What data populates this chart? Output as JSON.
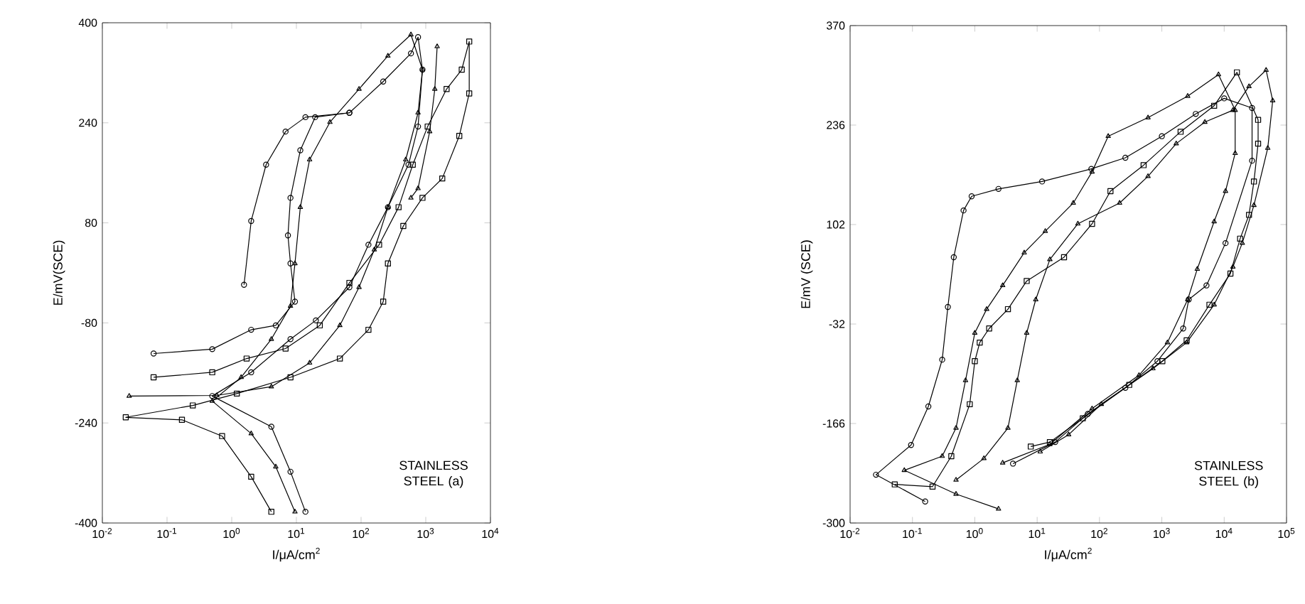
{
  "chart_data": [
    {
      "type": "line",
      "xlabel": "I/μA/cm$^{2}$",
      "ylabel": "E/mV(SCE)",
      "annotations": [
        "STAINLESS STEEL (a)"
      ],
      "log": "x",
      "xlim": [
        0.01,
        10000
      ],
      "ylim": [
        -400,
        400
      ],
      "xticks": [
        {
          "value": 0.01,
          "label": "10$^{-2}$"
        },
        {
          "value": 0.1,
          "label": "10$^{-1}$"
        },
        {
          "value": 1,
          "label": "10$^{0}$"
        },
        {
          "value": 10,
          "label": "10$^{1}$"
        },
        {
          "value": 100,
          "label": "10$^{2}$"
        },
        {
          "value": 1000,
          "label": "10$^{3}$"
        },
        {
          "value": 10000,
          "label": "10$^{4}$"
        }
      ],
      "yticks": [
        -400,
        -240,
        -80,
        80,
        240,
        400
      ],
      "series": [
        {
          "color": "#000000",
          "marker": "circle",
          "x": [
            13.8,
            8.1,
            4.1,
            0.5,
            2.0,
            8.1,
            20,
            66,
            130,
            260,
            540,
            760,
            890,
            760,
            590,
            220,
            66,
            19.5,
            11.5,
            8.1,
            7.4,
            8.1,
            9.5,
            4.8,
            2.0,
            0.5,
            0.062
          ],
          "values": [
            -382,
            -318,
            -246,
            -197,
            -159,
            -106,
            -76,
            -23,
            45,
            105,
            173,
            234,
            325,
            377,
            351,
            306,
            256,
            249,
            196,
            120,
            60,
            15,
            -46,
            -84,
            -91,
            -122,
            -129
          ]
        },
        {
          "color": "#000000",
          "marker": "triangle",
          "x": [
            9.5,
            4.8,
            2.0,
            0.5,
            1.4,
            4.1,
            8.1,
            9.5,
            11.5,
            16,
            33,
            93,
            260,
            590,
            890,
            760,
            490,
            260,
            160,
            93,
            47,
            16,
            4.1,
            0.59,
            0.026
          ],
          "values": [
            -382,
            -310,
            -257,
            -205,
            -167,
            -106,
            -53,
            15,
            105,
            181,
            241,
            294,
            347,
            381,
            325,
            256,
            181,
            105,
            37,
            -23,
            -84,
            -144,
            -182,
            -196,
            -197
          ]
        },
        {
          "color": "#000000",
          "marker": "circle",
          "x": [
            1.55,
            2.0,
            3.4,
            6.8,
            13.8,
            66
          ],
          "values": [
            -19,
            83,
            173,
            226,
            249,
            256
          ]
        },
        {
          "color": "#000000",
          "marker": "square",
          "x": [
            4.1,
            2.0,
            0.71,
            0.17,
            0.023,
            0.25,
            1.2,
            8.1,
            47,
            130,
            220,
            260,
            450,
            890,
            1800,
            3300,
            4700,
            4700,
            3600,
            2100,
            1070,
            630,
            380,
            190,
            66,
            23,
            6.8,
            1.7,
            0.5,
            0.062
          ],
          "values": [
            -382,
            -326,
            -261,
            -235,
            -231,
            -212,
            -193,
            -167,
            -137,
            -91,
            -46,
            15,
            75,
            120,
            151,
            219,
            287,
            370,
            325,
            294,
            234,
            173,
            105,
            45,
            -16,
            -84,
            -121,
            -137,
            -159,
            -167
          ]
        },
        {
          "color": "#000000",
          "marker": "triangle",
          "x": [
            1500,
            1380,
            1150,
            760,
            590
          ],
          "values": [
            362,
            294,
            226,
            135,
            120
          ]
        }
      ]
    },
    {
      "type": "line",
      "xlabel": "I/μA/cm$^{2}$",
      "ylabel": "E/mV (SCE)",
      "annotations": [
        "STAINLESS STEEL (b)"
      ],
      "log": "x",
      "xlim": [
        0.01,
        100000
      ],
      "ylim": [
        -300,
        370
      ],
      "xticks": [
        {
          "value": 0.01,
          "label": "10$^{-2}$"
        },
        {
          "value": 0.1,
          "label": "10$^{-1}$"
        },
        {
          "value": 1,
          "label": "10$^{0}$"
        },
        {
          "value": 10,
          "label": "10$^{1}$"
        },
        {
          "value": 100,
          "label": "10$^{2}$"
        },
        {
          "value": 1000,
          "label": "10$^{3}$"
        },
        {
          "value": 10000,
          "label": "10$^{4}$"
        },
        {
          "value": 100000,
          "label": "10$^{5}$"
        }
      ],
      "yticks": [
        -300,
        -166,
        -32,
        102,
        236,
        370
      ],
      "series": [
        {
          "color": "#000000",
          "marker": "circle",
          "x": [
            0.16,
            0.026,
            0.095,
            0.18,
            0.3,
            0.37,
            0.46,
            0.66,
            0.89,
            2.4,
            12,
            74,
            260,
            1000,
            3500,
            10000,
            28000,
            28000,
            10500,
            5200,
            2700,
            2200,
            850,
            260,
            65,
            19.5,
            4.1
          ],
          "values": [
            -271,
            -235,
            -195,
            -143,
            -80,
            -9,
            58,
            121,
            140,
            150,
            160,
            177,
            192,
            221,
            251,
            272,
            259,
            188,
            77,
            20,
            1,
            -38,
            -82,
            -118,
            -153,
            -191,
            -220
          ]
        },
        {
          "color": "#000000",
          "marker": "triangle",
          "x": [
            2.4,
            0.5,
            0.074,
            0.3,
            0.5,
            0.71,
            1.0,
            1.55,
            2.8,
            6.2,
            13.5,
            38,
            76,
            138,
            600,
            2600,
            8100,
            15000,
            15000,
            10500,
            6900,
            3700,
            2600,
            1230,
            430,
            76,
            16,
            2.8
          ],
          "values": [
            -281,
            -261,
            -229,
            -210,
            -172,
            -108,
            -44,
            -12,
            20,
            64,
            93,
            131,
            173,
            221,
            246,
            275,
            304,
            256,
            198,
            147,
            106,
            42,
            1,
            -57,
            -101,
            -146,
            -194,
            -219
          ]
        },
        {
          "color": "#000000",
          "marker": "square",
          "x": [
            0.052,
            0.21,
            0.42,
            0.83,
            1.0,
            1.2,
            1.7,
            3.4,
            6.8,
            27,
            76,
            150,
            510,
            2000,
            6900,
            16000,
            35000,
            35000,
            30000,
            25000,
            18000,
            12600,
            5800,
            2500,
            1020,
            300,
            54,
            16,
            7.9
          ],
          "values": [
            -248,
            -251,
            -210,
            -140,
            -82,
            -57,
            -38,
            -12,
            26,
            58,
            103,
            147,
            182,
            227,
            262,
            307,
            243,
            211,
            160,
            115,
            83,
            36,
            -6,
            -54,
            -82,
            -114,
            -159,
            -191,
            -197
          ]
        },
        {
          "color": "#000000",
          "marker": "triangle",
          "x": [
            0.5,
            1.4,
            3.4,
            4.8,
            6.8,
            9.5,
            16,
            45,
            210,
            600,
            1700,
            4900,
            13800,
            25000,
            47000,
            60000,
            50000,
            30000,
            19500,
            13800,
            6900,
            2500,
            720,
            107,
            32,
            11.2
          ],
          "values": [
            -242,
            -213,
            -172,
            -108,
            -44,
            1,
            55,
            103,
            131,
            167,
            211,
            240,
            256,
            288,
            310,
            269,
            205,
            128,
            77,
            45,
            -6,
            -57,
            -92,
            -140,
            -181,
            -204
          ]
        }
      ]
    }
  ]
}
